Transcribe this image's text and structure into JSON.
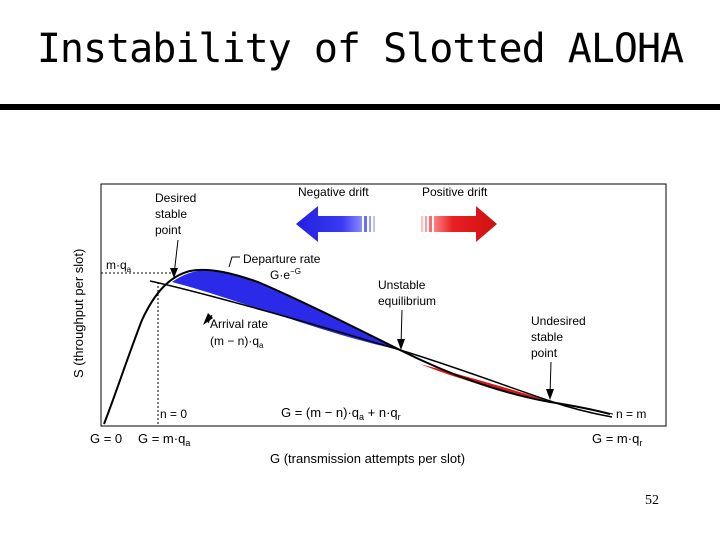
{
  "slide": {
    "title": "Instability of Slotted ALOHA",
    "page_number": "52"
  },
  "diagram": {
    "y_axis_label": "S (throughput per slot)",
    "x_axis_label": "G (transmission attempts per slot)",
    "y_tick": {
      "main": "m·q",
      "sub": "a"
    },
    "x_ticks": {
      "g0": "G = 0",
      "gmqa": {
        "main": "G = m·q",
        "sub": "a"
      },
      "gmqr": {
        "main": "G = m·q",
        "sub": "r"
      }
    },
    "n0": "n = 0",
    "nm": "n = m",
    "g_formula": {
      "p1": "G = (m − n)·q",
      "s1": "a",
      "p2": " + n·q",
      "s2": "r"
    },
    "desired": [
      "Desired",
      "stable",
      "point"
    ],
    "departure": {
      "line1": "Departure rate",
      "line2_main": "G·e",
      "line2_sup": "−G"
    },
    "arrival": {
      "line1": "Arrival rate",
      "line2_main": "(m − n)·q",
      "line2_sub": "a"
    },
    "unstable": [
      "Unstable",
      "equilibrium"
    ],
    "undesired": [
      "Undesired",
      "stable",
      "point"
    ],
    "negative_drift": "Negative drift",
    "positive_drift": "Positive drift",
    "colors": {
      "negative_drift": "#2323e6",
      "positive_drift": "#e01414",
      "curve": "#000000"
    }
  }
}
